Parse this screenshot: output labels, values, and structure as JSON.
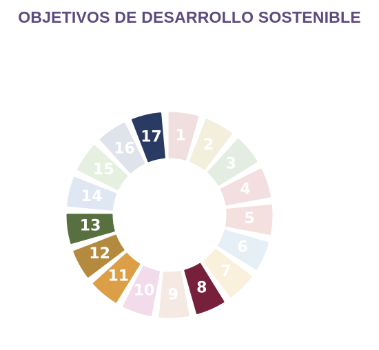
{
  "title": "OBJETIVOS DE DESARROLLO SOSTENIBLE",
  "title_color": "#5b4b7e",
  "goals": [
    {
      "number": "1",
      "color": "#f1dede",
      "highlighted": false
    },
    {
      "number": "2",
      "color": "#f3efdd",
      "highlighted": false
    },
    {
      "number": "3",
      "color": "#e3ede1",
      "highlighted": false
    },
    {
      "number": "4",
      "color": "#f3dfe1",
      "highlighted": false
    },
    {
      "number": "5",
      "color": "#f4e0df",
      "highlighted": false
    },
    {
      "number": "6",
      "color": "#e5eff5",
      "highlighted": false
    },
    {
      "number": "7",
      "color": "#faf1dc",
      "highlighted": false
    },
    {
      "number": "8",
      "color": "#76203b",
      "highlighted": true
    },
    {
      "number": "9",
      "color": "#f4e9e3",
      "highlighted": false
    },
    {
      "number": "10",
      "color": "#f2dceb",
      "highlighted": false
    },
    {
      "number": "11",
      "color": "#dc9e46",
      "highlighted": true
    },
    {
      "number": "12",
      "color": "#b48a3e",
      "highlighted": true
    },
    {
      "number": "13",
      "color": "#58703f",
      "highlighted": true
    },
    {
      "number": "14",
      "color": "#dfe7f3",
      "highlighted": false
    },
    {
      "number": "15",
      "color": "#e6f0e0",
      "highlighted": false
    },
    {
      "number": "16",
      "color": "#dfe3eb",
      "highlighted": false
    },
    {
      "number": "17",
      "color": "#293a63",
      "highlighted": true
    }
  ]
}
